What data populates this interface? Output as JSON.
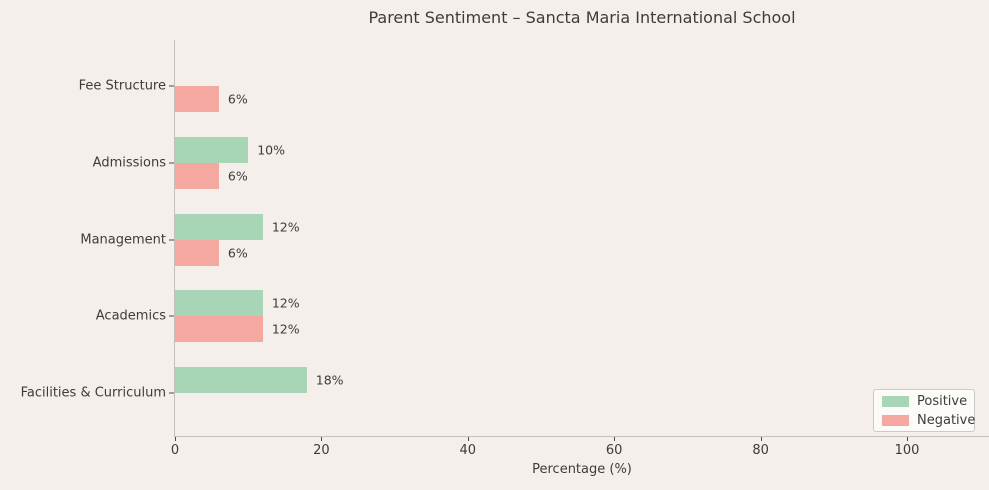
{
  "title": "Parent Sentiment – Sancta Maria International School",
  "colors": {
    "background": "#f4efeb",
    "positive": "#a8d5b5",
    "negative": "#f5a8a0",
    "text": "#3c3c3c",
    "spine": "#c3c0bc",
    "tick": "#4a4a4a",
    "legend_bg": "#fdfbf8",
    "legend_border": "#cccac5"
  },
  "legend": {
    "items": [
      {
        "label": "Positive",
        "color_key": "positive"
      },
      {
        "label": "Negative",
        "color_key": "negative"
      }
    ],
    "position": "lower right"
  },
  "chart_data": {
    "type": "bar",
    "orientation": "horizontal",
    "title": "Parent Sentiment – Sancta Maria International School",
    "xlabel": "Percentage (%)",
    "ylabel": "",
    "categories": [
      "Fee Structure",
      "Admissions",
      "Management",
      "Academics",
      "Facilities & Curriculum"
    ],
    "series": [
      {
        "name": "Positive",
        "color_key": "positive",
        "values": [
          0,
          10,
          12,
          12,
          18
        ]
      },
      {
        "name": "Negative",
        "color_key": "negative",
        "values": [
          6,
          6,
          6,
          12,
          0
        ]
      }
    ],
    "value_label_format": "{v}%",
    "hide_zero_bars": true,
    "xticks": [
      0,
      20,
      40,
      60,
      80,
      100
    ],
    "xlim": [
      0,
      111
    ],
    "grid": false,
    "legend_position": "lower right"
  }
}
